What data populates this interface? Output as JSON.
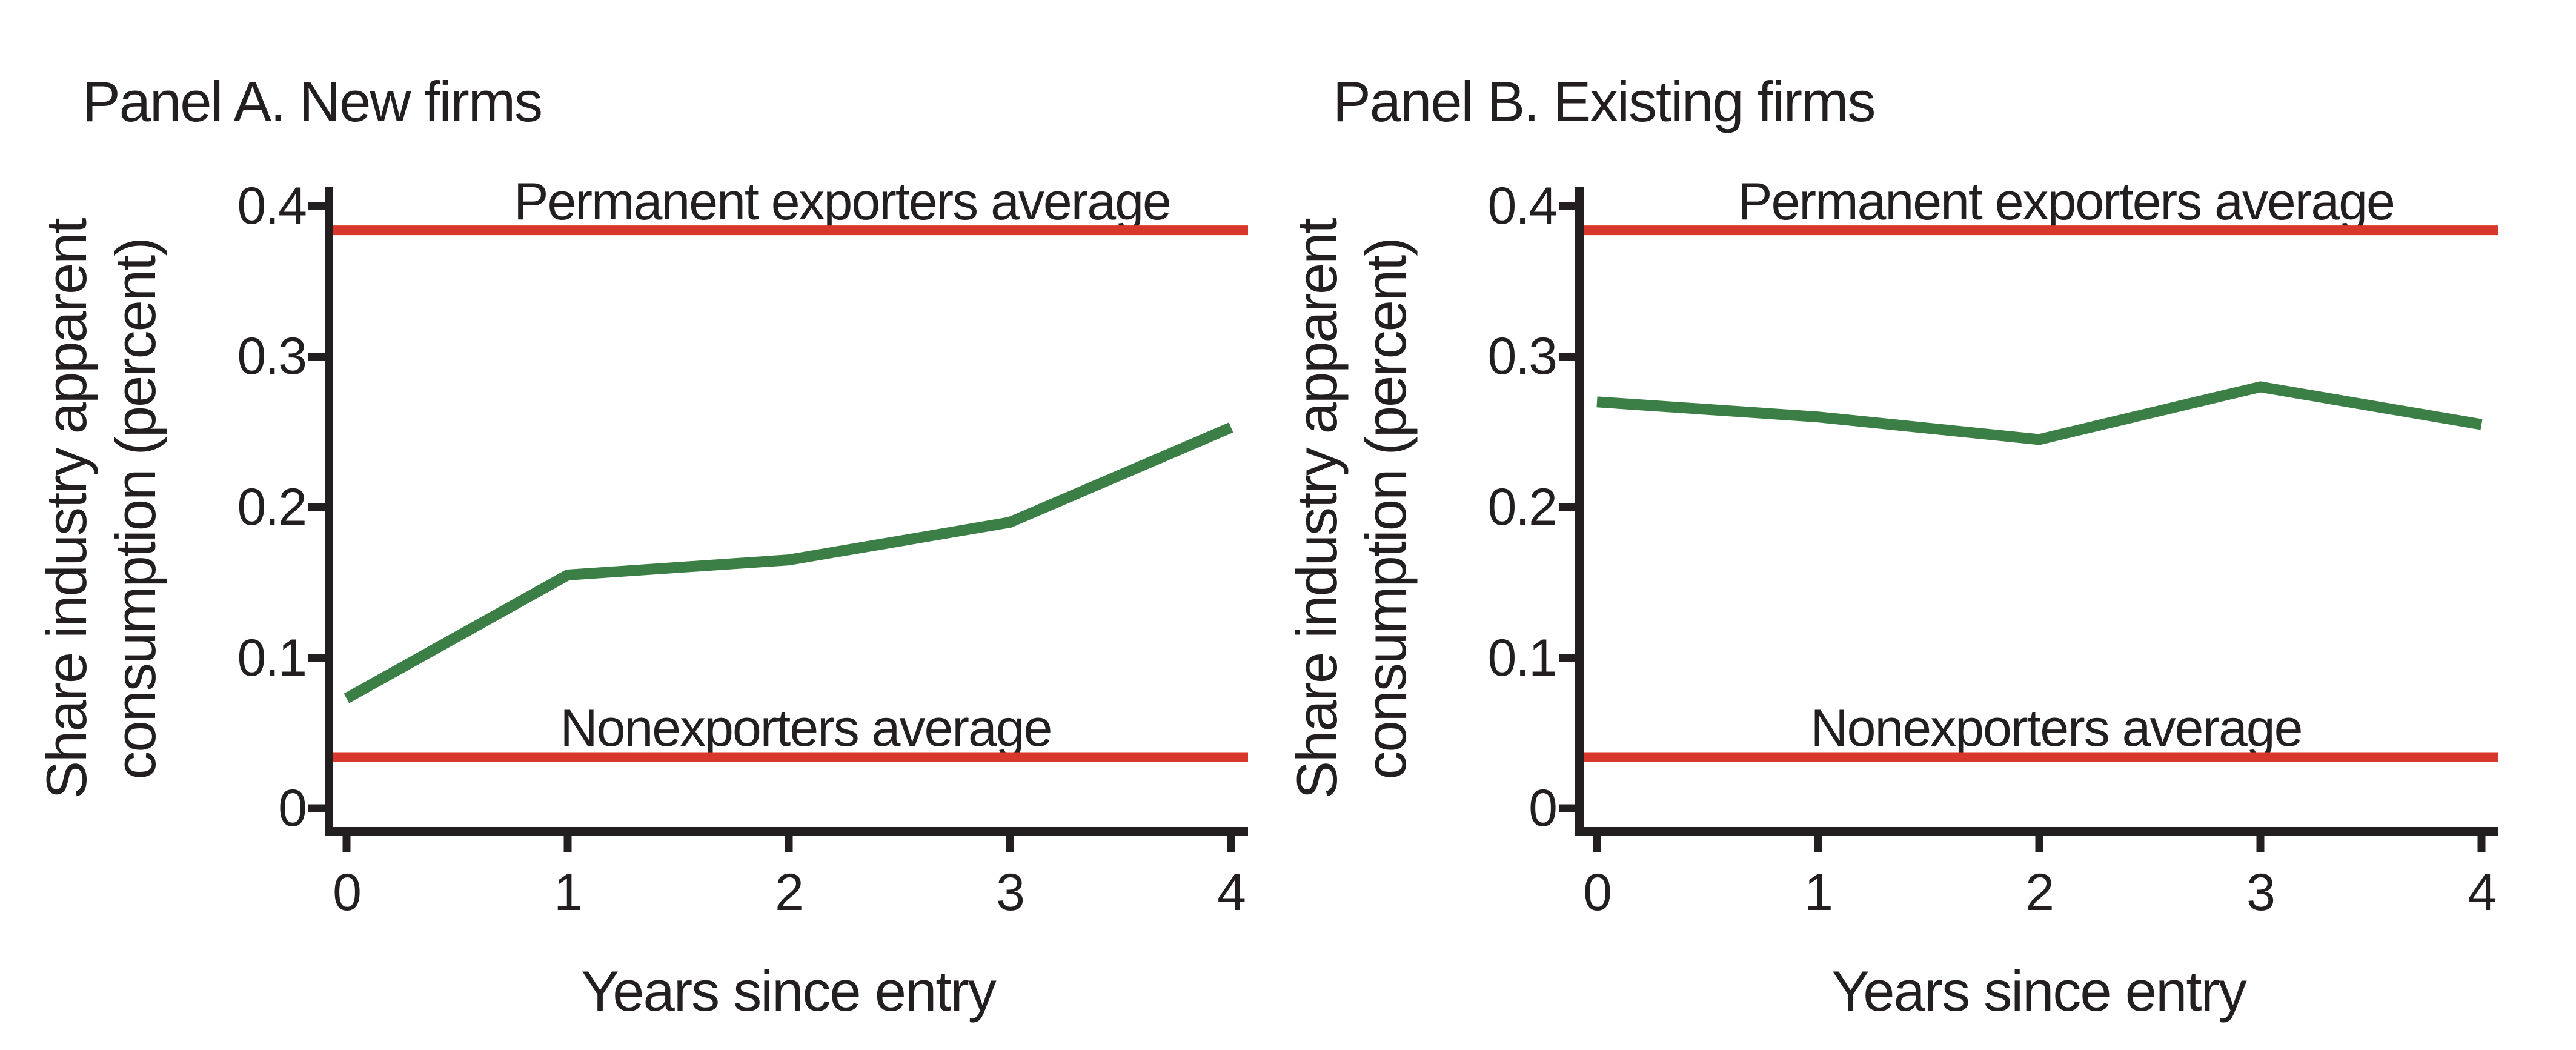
{
  "figure": {
    "background": "#ffffff",
    "text_color": "#231F20"
  },
  "chart_data": {
    "type": "line",
    "panels": [
      {
        "title": "Panel A. New firms",
        "series_name": "green-line",
        "x": [
          0,
          1,
          2,
          3,
          4
        ],
        "values": [
          0.073,
          0.155,
          0.165,
          0.19,
          0.253
        ]
      },
      {
        "title": "Panel B. Existing firms",
        "series_name": "green-line",
        "x": [
          0,
          1,
          2,
          3,
          4
        ],
        "values": [
          0.27,
          0.26,
          0.245,
          0.28,
          0.255
        ]
      }
    ],
    "ref_lines": {
      "permanent": {
        "label": "Permanent exporters average",
        "value": 0.384
      },
      "nonexporters": {
        "label": "Nonexporters average",
        "value": 0.034
      }
    },
    "axes": {
      "xlabel": "Years since entry",
      "ylabel_line1": "Share industry apparent",
      "ylabel_line2": "consumption (percent)",
      "xtick_labels": [
        "0",
        "1",
        "2",
        "3",
        "4"
      ],
      "xtick_values": [
        0,
        1,
        2,
        3,
        4
      ],
      "ytick_labels": [
        "0.4",
        "0.3",
        "0.2",
        "0.1",
        "0"
      ],
      "ytick_values": [
        0.4,
        0.3,
        0.2,
        0.1,
        0
      ],
      "xlim": [
        0,
        4
      ],
      "ylim": [
        0,
        0.4
      ],
      "grid": false,
      "legend": false
    },
    "line_color": "#3B7E46",
    "ref_color": "#D8372C",
    "axis_color": "#231F20"
  }
}
